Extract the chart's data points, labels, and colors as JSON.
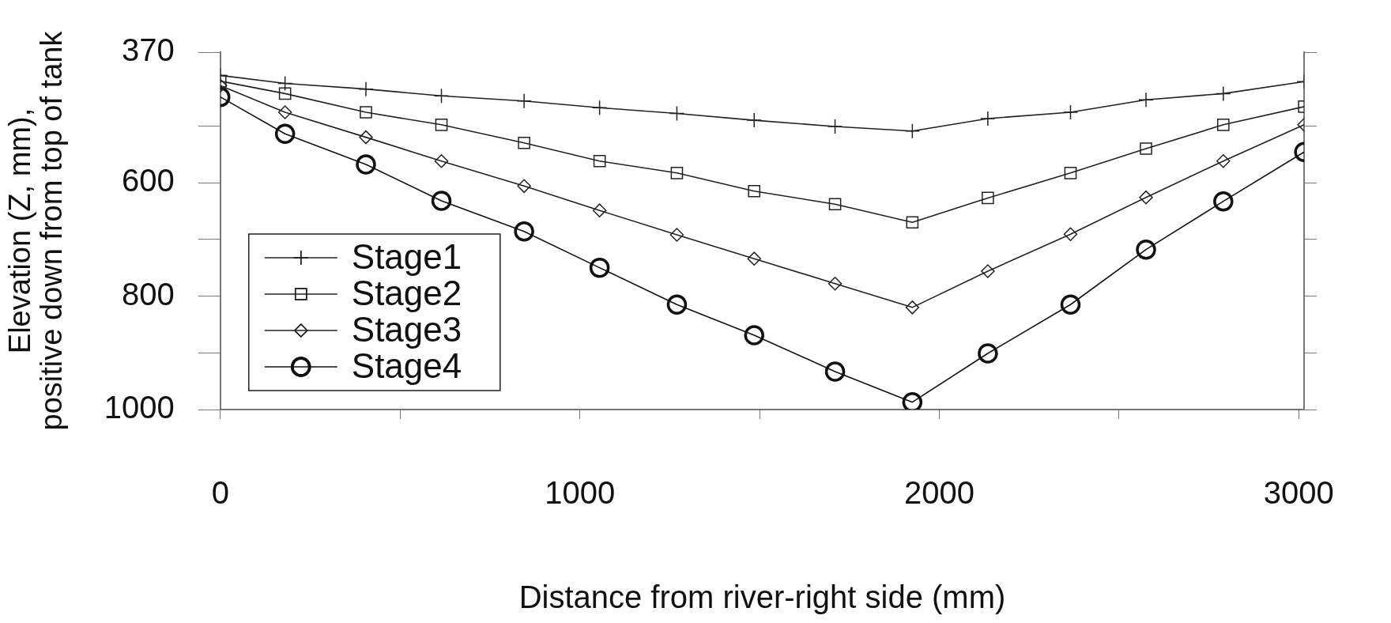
{
  "chart_data": {
    "type": "line",
    "xlabel": "Distance from river-right side (mm)",
    "ylabel": "Elevation (Z, mm),\npositive down from top of tank",
    "x": [
      0,
      180,
      405,
      615,
      845,
      1055,
      1270,
      1485,
      1710,
      1925,
      2135,
      2365,
      2575,
      2790,
      3015
    ],
    "xlim": [
      0,
      3015
    ],
    "xticks": [
      0,
      {
        "value": 500,
        "label": null
      },
      1000,
      {
        "value": 1500,
        "label": null
      },
      2000,
      {
        "value": 2500,
        "label": null
      },
      3000
    ],
    "ylim": [
      1000,
      370
    ],
    "yticks": [
      370,
      {
        "value": 500,
        "label": null
      },
      600,
      {
        "value": 700,
        "label": null
      },
      800,
      {
        "value": 900,
        "label": null
      },
      1000
    ],
    "legend": "bottom left",
    "series": [
      {
        "name": "Stage1",
        "color": "#222222",
        "marker": "cross",
        "values": [
          411,
          425,
          435,
          447,
          456,
          468,
          478,
          490,
          501,
          509,
          487,
          476,
          454,
          443,
          422
        ]
      },
      {
        "name": "Stage2",
        "color": "#222222",
        "marker": "square",
        "values": [
          421,
          443,
          476,
          498,
          530,
          562,
          583,
          615,
          638,
          670,
          627,
          583,
          540,
          498,
          466
        ]
      },
      {
        "name": "Stage3",
        "color": "#222222",
        "marker": "diamond",
        "values": [
          429,
          476,
          520,
          562,
          606,
          649,
          692,
          734,
          778,
          820,
          756,
          691,
          626,
          562,
          498
        ]
      },
      {
        "name": "Stage4",
        "color": "#111111",
        "marker": "circle",
        "values": [
          449,
          514,
          568,
          632,
          686,
          750,
          815,
          869,
          933,
          987,
          901,
          815,
          718,
          633,
          546
        ]
      }
    ]
  }
}
